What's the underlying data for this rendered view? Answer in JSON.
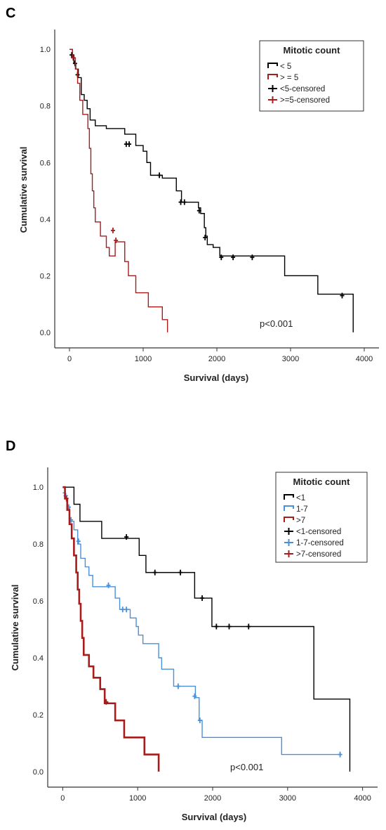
{
  "chart_data": [
    {
      "panel": "C",
      "type": "line",
      "xlabel": "Survival (days)",
      "ylabel": "Cumulative survival",
      "xlim": [
        -200,
        4200
      ],
      "ylim": [
        -0.03,
        1.05
      ],
      "x_ticks": [
        0,
        1000,
        2000,
        3000,
        4000
      ],
      "y_ticks": [
        0.0,
        0.2,
        0.4,
        0.6,
        0.8,
        1.0
      ],
      "y_tick_labels": [
        "0.0",
        "0.2",
        "0.4",
        "0.6",
        "0.8",
        "1.0"
      ],
      "grid": false,
      "legend": {
        "title": "Mitotic count",
        "placement": "top-right",
        "entries": [
          {
            "label": "< 5",
            "kind": "step",
            "color": "#000000"
          },
          {
            "label": "> = 5",
            "kind": "step",
            "color": "#a81c1c"
          },
          {
            "label": "<5-censored",
            "kind": "cross",
            "color": "#000000"
          },
          {
            "label": ">=5-censored",
            "kind": "cross",
            "color": "#a81c1c"
          }
        ]
      },
      "annotation": "p<0.001",
      "series": [
        {
          "name": "< 5",
          "color": "#000000",
          "width": 1.4,
          "steps": [
            [
              0,
              1.0
            ],
            [
              40,
              0.98
            ],
            [
              60,
              0.95
            ],
            [
              85,
              0.93
            ],
            [
              120,
              0.9
            ],
            [
              160,
              0.84
            ],
            [
              200,
              0.82
            ],
            [
              240,
              0.79
            ],
            [
              280,
              0.75
            ],
            [
              350,
              0.73
            ],
            [
              500,
              0.72
            ],
            [
              750,
              0.7
            ],
            [
              900,
              0.66
            ],
            [
              1000,
              0.64
            ],
            [
              1050,
              0.6
            ],
            [
              1100,
              0.555
            ],
            [
              1260,
              0.545
            ],
            [
              1450,
              0.5
            ],
            [
              1520,
              0.46
            ],
            [
              1750,
              0.44
            ],
            [
              1780,
              0.42
            ],
            [
              1830,
              0.37
            ],
            [
              1850,
              0.34
            ],
            [
              1870,
              0.31
            ],
            [
              1950,
              0.3
            ],
            [
              2040,
              0.27
            ],
            [
              2920,
              0.2
            ],
            [
              3370,
              0.135
            ],
            [
              3850,
              0.0
            ]
          ],
          "end_x": 3850,
          "censored": [
            [
              30,
              0.98
            ],
            [
              75,
              0.95
            ],
            [
              110,
              0.91
            ],
            [
              770,
              0.665
            ],
            [
              810,
              0.665
            ],
            [
              1220,
              0.555
            ],
            [
              1510,
              0.46
            ],
            [
              1560,
              0.46
            ],
            [
              1760,
              0.43
            ],
            [
              1840,
              0.335
            ],
            [
              2060,
              0.265
            ],
            [
              2220,
              0.265
            ],
            [
              2480,
              0.265
            ],
            [
              3700,
              0.13
            ]
          ]
        },
        {
          "name": "> = 5",
          "color": "#a81c1c",
          "width": 1.4,
          "steps": [
            [
              0,
              1.0
            ],
            [
              40,
              0.97
            ],
            [
              80,
              0.93
            ],
            [
              110,
              0.88
            ],
            [
              140,
              0.82
            ],
            [
              180,
              0.77
            ],
            [
              250,
              0.72
            ],
            [
              270,
              0.65
            ],
            [
              290,
              0.56
            ],
            [
              310,
              0.5
            ],
            [
              330,
              0.44
            ],
            [
              350,
              0.39
            ],
            [
              420,
              0.34
            ],
            [
              500,
              0.3
            ],
            [
              540,
              0.27
            ],
            [
              620,
              0.32
            ],
            [
              750,
              0.25
            ],
            [
              800,
              0.2
            ],
            [
              900,
              0.14
            ],
            [
              1070,
              0.09
            ],
            [
              1260,
              0.045
            ],
            [
              1330,
              0.0
            ]
          ],
          "end_x": 1330,
          "censored": [
            [
              50,
              0.97
            ],
            [
              590,
              0.36
            ],
            [
              630,
              0.325
            ]
          ]
        }
      ]
    },
    {
      "panel": "D",
      "type": "line",
      "xlabel": "Survival (days)",
      "ylabel": "Cumulative survival",
      "xlim": [
        -200,
        4200
      ],
      "ylim": [
        -0.03,
        1.05
      ],
      "x_ticks": [
        0,
        1000,
        2000,
        3000,
        4000
      ],
      "y_ticks": [
        0.0,
        0.2,
        0.4,
        0.6,
        0.8,
        1.0
      ],
      "y_tick_labels": [
        "0.0",
        "0.2",
        "0.4",
        "0.6",
        "0.8",
        "1.0"
      ],
      "grid": false,
      "legend": {
        "title": "Mitotic count",
        "placement": "top-right",
        "entries": [
          {
            "label": "<1",
            "kind": "step",
            "color": "#000000"
          },
          {
            "label": "1-7",
            "kind": "step",
            "color": "#4a90d9"
          },
          {
            "label": ">7",
            "kind": "step",
            "color": "#a81c1c"
          },
          {
            "label": "<1-censored",
            "kind": "cross",
            "color": "#000000"
          },
          {
            "label": "1-7-censored",
            "kind": "cross",
            "color": "#4a90d9"
          },
          {
            "label": ">7-censored",
            "kind": "cross",
            "color": "#a81c1c"
          }
        ]
      },
      "annotation": "p<0.001",
      "series": [
        {
          "name": "<1",
          "color": "#000000",
          "width": 1.4,
          "steps": [
            [
              0,
              1.0
            ],
            [
              150,
              0.94
            ],
            [
              230,
              0.88
            ],
            [
              520,
              0.82
            ],
            [
              1020,
              0.76
            ],
            [
              1110,
              0.7
            ],
            [
              1760,
              0.61
            ],
            [
              1990,
              0.51
            ],
            [
              3350,
              0.255
            ],
            [
              3830,
              0.0
            ]
          ],
          "end_x": 3830,
          "censored": [
            [
              850,
              0.825
            ],
            [
              1230,
              0.7
            ],
            [
              1570,
              0.7
            ],
            [
              1860,
              0.61
            ],
            [
              2050,
              0.51
            ],
            [
              2220,
              0.51
            ],
            [
              2480,
              0.51
            ]
          ]
        },
        {
          "name": "1-7",
          "color": "#4a90d9",
          "width": 1.4,
          "steps": [
            [
              0,
              0.98
            ],
            [
              30,
              0.96
            ],
            [
              60,
              0.93
            ],
            [
              90,
              0.88
            ],
            [
              150,
              0.85
            ],
            [
              200,
              0.8
            ],
            [
              240,
              0.75
            ],
            [
              300,
              0.72
            ],
            [
              350,
              0.69
            ],
            [
              400,
              0.65
            ],
            [
              700,
              0.61
            ],
            [
              760,
              0.57
            ],
            [
              900,
              0.54
            ],
            [
              980,
              0.51
            ],
            [
              1010,
              0.48
            ],
            [
              1070,
              0.45
            ],
            [
              1280,
              0.4
            ],
            [
              1320,
              0.36
            ],
            [
              1480,
              0.3
            ],
            [
              1770,
              0.26
            ],
            [
              1820,
              0.18
            ],
            [
              1860,
              0.12
            ],
            [
              2920,
              0.06
            ],
            [
              3700,
              0.06
            ]
          ],
          "end_x": 3700,
          "censored": [
            [
              40,
              0.97
            ],
            [
              80,
              0.93
            ],
            [
              110,
              0.885
            ],
            [
              210,
              0.81
            ],
            [
              610,
              0.655
            ],
            [
              800,
              0.57
            ],
            [
              850,
              0.57
            ],
            [
              1540,
              0.3
            ],
            [
              1760,
              0.265
            ],
            [
              1830,
              0.18
            ],
            [
              3700,
              0.06
            ]
          ]
        },
        {
          "name": ">7",
          "color": "#a81c1c",
          "width": 2.6,
          "steps": [
            [
              0,
              1.0
            ],
            [
              30,
              0.96
            ],
            [
              60,
              0.92
            ],
            [
              90,
              0.87
            ],
            [
              120,
              0.82
            ],
            [
              150,
              0.76
            ],
            [
              180,
              0.7
            ],
            [
              200,
              0.64
            ],
            [
              220,
              0.59
            ],
            [
              240,
              0.53
            ],
            [
              260,
              0.47
            ],
            [
              280,
              0.41
            ],
            [
              350,
              0.37
            ],
            [
              410,
              0.33
            ],
            [
              500,
              0.29
            ],
            [
              560,
              0.24
            ],
            [
              700,
              0.18
            ],
            [
              820,
              0.12
            ],
            [
              1090,
              0.06
            ],
            [
              1280,
              0.0
            ]
          ],
          "end_x": 1280,
          "censored": [
            [
              50,
              0.96
            ],
            [
              580,
              0.245
            ]
          ]
        }
      ]
    }
  ]
}
